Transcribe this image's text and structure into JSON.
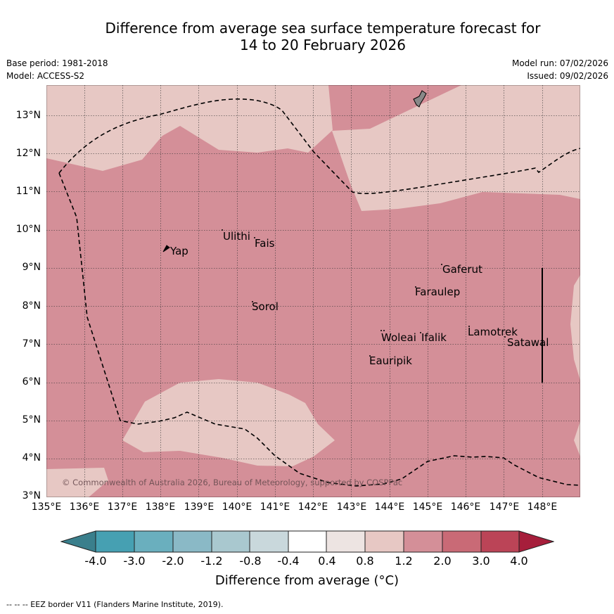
{
  "title": {
    "line1": "Difference from average sea surface temperature forecast for",
    "line2": "14 to 20 February 2026"
  },
  "meta": {
    "base_period": "Base period: 1981-2018",
    "model": "Model: ACCESS-S2",
    "model_run": "Model run: 07/02/2026",
    "issued": "Issued: 09/02/2026"
  },
  "map": {
    "lat_labels": [
      "13°N",
      "12°N",
      "11°N",
      "10°N",
      "9°N",
      "8°N",
      "7°N",
      "6°N",
      "5°N",
      "4°N",
      "3°N"
    ],
    "lon_labels": [
      "135°E",
      "136°E",
      "137°E",
      "138°E",
      "139°E",
      "140°E",
      "141°E",
      "142°E",
      "143°E",
      "144°E",
      "145°E",
      "146°E",
      "147°E",
      "148°E"
    ],
    "places": [
      "Ulithi",
      "Fais",
      "Yap",
      "Gaferut",
      "Faraulep",
      "Sorol",
      "Lamotrek",
      "Woleai",
      "Ifalik",
      "Satawal",
      "Eauripik"
    ],
    "copyright": "© Commonwealth of Australia 2026, Bureau of Meteorology, supported by COSPPac",
    "colors": {
      "band_0_8_to_1_2": "#e7c8c4",
      "band_1_2_to_2_0": "#d48f98",
      "land": "#888888"
    }
  },
  "colorbar": {
    "ticks": [
      "-4.0",
      "-3.0",
      "-2.0",
      "-1.2",
      "-0.8",
      "-0.4",
      "0.4",
      "0.8",
      "1.2",
      "2.0",
      "3.0",
      "4.0"
    ],
    "colors": [
      "#3a7f8c",
      "#46a0b2",
      "#6aafbe",
      "#8ab9c6",
      "#a9c8cf",
      "#c9d8dc",
      "#ffffff",
      "#ede4e2",
      "#e7c8c4",
      "#d48f98",
      "#c96a76",
      "#bb4457",
      "#a61e3b"
    ],
    "label": "Difference from average (°C)"
  },
  "footer": "--  --  -- EEZ border V11 (Flanders Marine Institute, 2019)."
}
